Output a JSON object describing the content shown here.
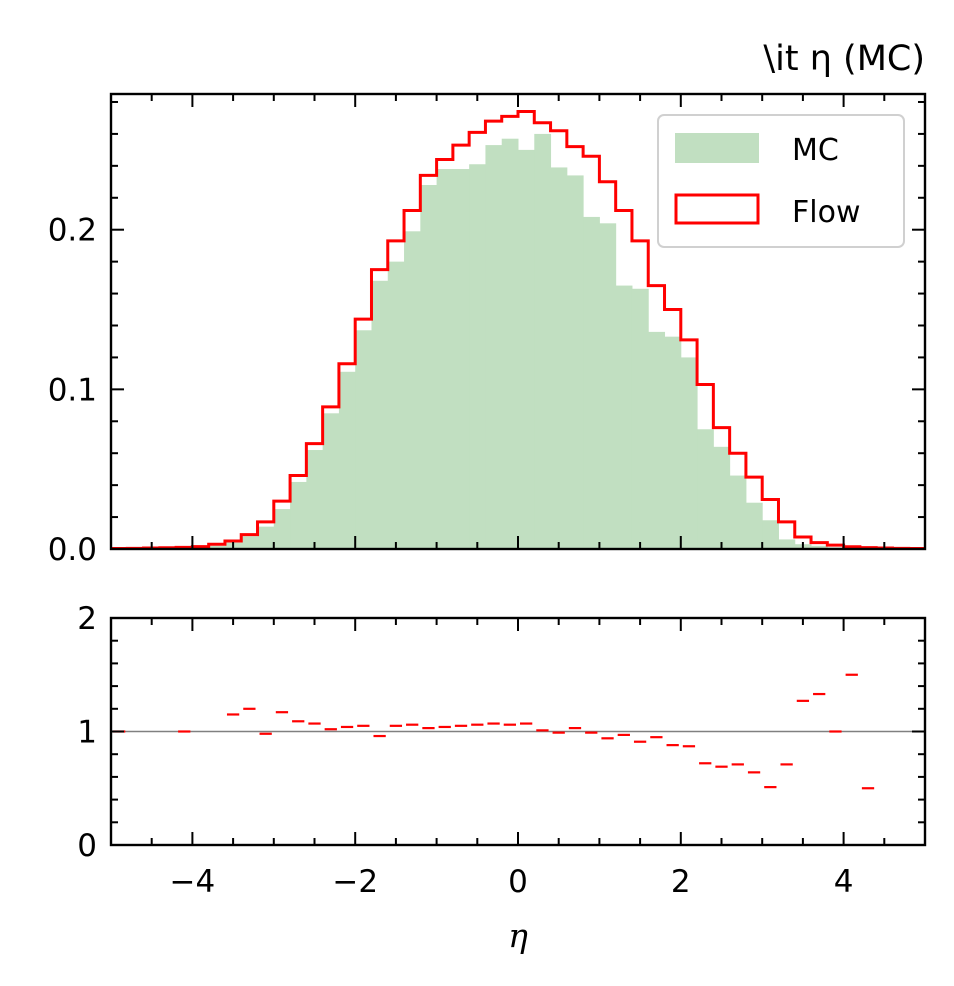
{
  "chart_data": [
    {
      "type": "histogram",
      "title": "\\it η (MC)",
      "xlabel": "",
      "ylabel": "",
      "xlim": [
        -5,
        5
      ],
      "ylim": [
        0,
        0.285
      ],
      "yticks": [
        0.0,
        0.1,
        0.2
      ],
      "ytick_labels": [
        "0.0",
        "0.1",
        "0.2"
      ],
      "grid": false,
      "legend": "top-right",
      "colors": {
        "MC": "#c1dfc1",
        "Flow": "#ff0000"
      },
      "bin_edges": [
        -5.0,
        -4.8,
        -4.6,
        -4.4,
        -4.2,
        -4.0,
        -3.8,
        -3.6,
        -3.4,
        -3.2,
        -3.0,
        -2.8,
        -2.6,
        -2.4,
        -2.2,
        -2.0,
        -1.8,
        -1.6,
        -1.4,
        -1.2,
        -1.0,
        -0.8,
        -0.6,
        -0.4,
        -0.2,
        0.0,
        0.2,
        0.4,
        0.6,
        0.8,
        1.0,
        1.2,
        1.4,
        1.6,
        1.8,
        2.0,
        2.2,
        2.4,
        2.6,
        2.8,
        3.0,
        3.2,
        3.4,
        3.6,
        3.8,
        4.0,
        4.2,
        4.4,
        4.6,
        4.8,
        5.0
      ],
      "series": [
        {
          "name": "MC",
          "style": "filled",
          "values": [
            0.0,
            0.0,
            0.0,
            0.0,
            0.0003,
            0.001,
            0.002,
            0.004,
            0.008,
            0.014,
            0.025,
            0.042,
            0.062,
            0.085,
            0.111,
            0.137,
            0.168,
            0.18,
            0.199,
            0.228,
            0.238,
            0.238,
            0.241,
            0.253,
            0.257,
            0.25,
            0.26,
            0.239,
            0.234,
            0.208,
            0.204,
            0.165,
            0.163,
            0.136,
            0.133,
            0.12,
            0.075,
            0.064,
            0.046,
            0.029,
            0.018,
            0.006,
            0.003,
            0.002,
            0.001,
            0.0005,
            0.0002,
            0.0,
            0.0,
            0.0
          ]
        },
        {
          "name": "Flow",
          "style": "step",
          "values": [
            0.0003,
            0.0004,
            0.0006,
            0.0008,
            0.001,
            0.0015,
            0.003,
            0.005,
            0.009,
            0.017,
            0.03,
            0.046,
            0.066,
            0.089,
            0.116,
            0.144,
            0.175,
            0.193,
            0.212,
            0.234,
            0.244,
            0.253,
            0.261,
            0.268,
            0.271,
            0.274,
            0.267,
            0.262,
            0.252,
            0.246,
            0.23,
            0.212,
            0.193,
            0.165,
            0.15,
            0.131,
            0.103,
            0.076,
            0.06,
            0.045,
            0.031,
            0.017,
            0.0075,
            0.004,
            0.0024,
            0.0014,
            0.0009,
            0.0006,
            0.0004,
            0.0003
          ]
        }
      ]
    },
    {
      "type": "scatter",
      "subtype": "ratio",
      "xlabel": "η",
      "ylabel": "",
      "xlim": [
        -5,
        5
      ],
      "ylim": [
        0,
        2
      ],
      "xticks": [
        -4,
        -2,
        0,
        2,
        4
      ],
      "xtick_labels": [
        "−4",
        "−2",
        "0",
        "2",
        "4"
      ],
      "yticks": [
        0,
        1,
        2
      ],
      "ytick_labels": [
        "0",
        "1",
        "2"
      ],
      "reference_line": 1,
      "grid": false,
      "marker_color": "#ff0000",
      "line_color": "#808080",
      "points": [
        {
          "x0": -5.0,
          "x1": -4.8,
          "y": 1.0
        },
        {
          "x0": -4.2,
          "x1": -4.0,
          "y": 1.0
        },
        {
          "x0": -3.6,
          "x1": -3.4,
          "y": 1.15
        },
        {
          "x0": -3.4,
          "x1": -3.2,
          "y": 1.2
        },
        {
          "x0": -3.2,
          "x1": -3.0,
          "y": 0.98
        },
        {
          "x0": -3.0,
          "x1": -2.8,
          "y": 1.17
        },
        {
          "x0": -2.8,
          "x1": -2.6,
          "y": 1.09
        },
        {
          "x0": -2.6,
          "x1": -2.4,
          "y": 1.07
        },
        {
          "x0": -2.4,
          "x1": -2.2,
          "y": 1.02
        },
        {
          "x0": -2.2,
          "x1": -2.0,
          "y": 1.04
        },
        {
          "x0": -2.0,
          "x1": -1.8,
          "y": 1.05
        },
        {
          "x0": -1.8,
          "x1": -1.6,
          "y": 0.96
        },
        {
          "x0": -1.6,
          "x1": -1.4,
          "y": 1.05
        },
        {
          "x0": -1.4,
          "x1": -1.2,
          "y": 1.06
        },
        {
          "x0": -1.2,
          "x1": -1.0,
          "y": 1.03
        },
        {
          "x0": -1.0,
          "x1": -0.8,
          "y": 1.04
        },
        {
          "x0": -0.8,
          "x1": -0.6,
          "y": 1.05
        },
        {
          "x0": -0.6,
          "x1": -0.4,
          "y": 1.06
        },
        {
          "x0": -0.4,
          "x1": -0.2,
          "y": 1.07
        },
        {
          "x0": -0.2,
          "x1": 0.0,
          "y": 1.06
        },
        {
          "x0": 0.0,
          "x1": 0.2,
          "y": 1.07
        },
        {
          "x0": 0.2,
          "x1": 0.4,
          "y": 1.01
        },
        {
          "x0": 0.4,
          "x1": 0.6,
          "y": 0.99
        },
        {
          "x0": 0.6,
          "x1": 0.8,
          "y": 1.03
        },
        {
          "x0": 0.8,
          "x1": 1.0,
          "y": 0.99
        },
        {
          "x0": 1.0,
          "x1": 1.2,
          "y": 0.94
        },
        {
          "x0": 1.2,
          "x1": 1.4,
          "y": 0.97
        },
        {
          "x0": 1.4,
          "x1": 1.6,
          "y": 0.91
        },
        {
          "x0": 1.6,
          "x1": 1.8,
          "y": 0.95
        },
        {
          "x0": 1.8,
          "x1": 2.0,
          "y": 0.88
        },
        {
          "x0": 2.0,
          "x1": 2.2,
          "y": 0.87
        },
        {
          "x0": 2.2,
          "x1": 2.4,
          "y": 0.72
        },
        {
          "x0": 2.4,
          "x1": 2.6,
          "y": 0.69
        },
        {
          "x0": 2.6,
          "x1": 2.8,
          "y": 0.71
        },
        {
          "x0": 2.8,
          "x1": 3.0,
          "y": 0.64
        },
        {
          "x0": 3.0,
          "x1": 3.2,
          "y": 0.51
        },
        {
          "x0": 3.2,
          "x1": 3.4,
          "y": 0.71
        },
        {
          "x0": 3.4,
          "x1": 3.6,
          "y": 1.27
        },
        {
          "x0": 3.6,
          "x1": 3.8,
          "y": 1.33
        },
        {
          "x0": 3.8,
          "x1": 4.0,
          "y": 1.0
        },
        {
          "x0": 4.0,
          "x1": 4.2,
          "y": 1.5
        },
        {
          "x0": 4.2,
          "x1": 4.4,
          "y": 0.5
        }
      ]
    }
  ]
}
